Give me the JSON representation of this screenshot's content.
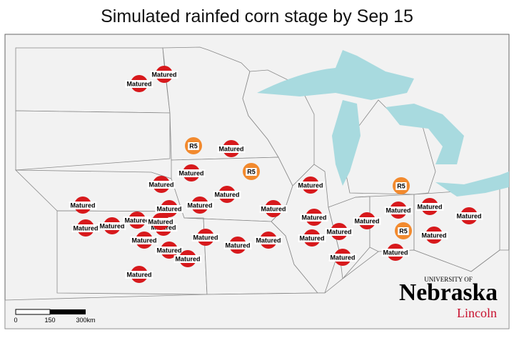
{
  "title": "Simulated rainfed corn stage by Sep 15",
  "markers": [
    {
      "label": "Matured",
      "color": "#d7191c"
    },
    {
      "label": "Matured",
      "color": "#d7191c"
    },
    {
      "label": "R5",
      "color": "#f28a2e"
    },
    {
      "label": "Matured",
      "color": "#d7191c"
    },
    {
      "label": "R5",
      "color": "#f28a2e"
    },
    {
      "label": "Matured",
      "color": "#d7191c"
    },
    {
      "label": "Matured",
      "color": "#d7191c"
    },
    {
      "label": "Matured",
      "color": "#d7191c"
    },
    {
      "label": "R5",
      "color": "#f28a2e"
    },
    {
      "label": "Matured",
      "color": "#d7191c"
    },
    {
      "label": "Matured",
      "color": "#d7191c"
    },
    {
      "label": "Matured",
      "color": "#d7191c"
    },
    {
      "label": "Matured",
      "color": "#d7191c"
    },
    {
      "label": "Matured",
      "color": "#d7191c"
    },
    {
      "label": "Matured",
      "color": "#d7191c"
    },
    {
      "label": "Matured",
      "color": "#d7191c"
    },
    {
      "label": "Matured",
      "color": "#d7191c"
    },
    {
      "label": "Matured",
      "color": "#d7191c"
    },
    {
      "label": "Matured",
      "color": "#d7191c"
    },
    {
      "label": "Matured",
      "color": "#d7191c"
    },
    {
      "label": "Matured",
      "color": "#d7191c"
    },
    {
      "label": "Matured",
      "color": "#d7191c"
    },
    {
      "label": "Matured",
      "color": "#d7191c"
    },
    {
      "label": "Matured",
      "color": "#d7191c"
    },
    {
      "label": "R5",
      "color": "#f28a2e"
    },
    {
      "label": "Matured",
      "color": "#d7191c"
    },
    {
      "label": "Matured",
      "color": "#d7191c"
    },
    {
      "label": "Matured",
      "color": "#d7191c"
    },
    {
      "label": "Matured",
      "color": "#d7191c"
    },
    {
      "label": "Matured",
      "color": "#d7191c"
    },
    {
      "label": "Matured",
      "color": "#d7191c"
    },
    {
      "label": "Matured",
      "color": "#d7191c"
    },
    {
      "label": "Matured",
      "color": "#d7191c"
    },
    {
      "label": "Matured",
      "color": "#d7191c"
    },
    {
      "label": "Matured",
      "color": "#d7191c"
    },
    {
      "label": "Matured",
      "color": "#d7191c"
    },
    {
      "label": "Matured",
      "color": "#d7191c"
    }
  ],
  "scale_bar": {
    "labels": [
      "0",
      "150",
      "300km"
    ]
  },
  "logo": {
    "top": "UNIVERSITY OF",
    "name": "Nebraska",
    "campus": "Lincoln"
  }
}
